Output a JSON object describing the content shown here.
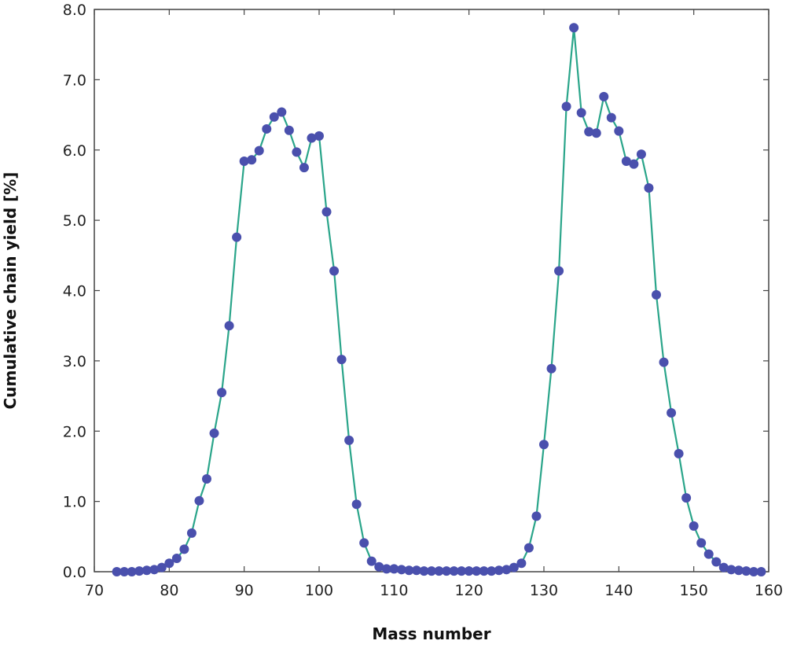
{
  "chart_data": {
    "type": "line",
    "title": "",
    "xlabel": "Mass number",
    "ylabel": "Cumulative chain yield [%]",
    "xlim": [
      70,
      160
    ],
    "ylim": [
      0.0,
      8.0
    ],
    "xticks": [
      "70",
      "80",
      "90",
      "100",
      "110",
      "120",
      "130",
      "140",
      "150",
      "160"
    ],
    "yticks": [
      "0.0",
      "1.0",
      "2.0",
      "3.0",
      "4.0",
      "5.0",
      "6.0",
      "7.0",
      "8.0"
    ],
    "grid": false,
    "legend": "none",
    "line_color": "#2aa58a",
    "marker_color": "#4a50ad",
    "series": [
      {
        "x": [
          73,
          74,
          75,
          76,
          77,
          78,
          79,
          80,
          81,
          82,
          83,
          84,
          85,
          86,
          87,
          88,
          89,
          90,
          91,
          92,
          93,
          94,
          95,
          96,
          97,
          98,
          99,
          100,
          101,
          102,
          103,
          104,
          105,
          106,
          107,
          108,
          109,
          110,
          111,
          112,
          113,
          114,
          115,
          116,
          117,
          118,
          119,
          120,
          121,
          122,
          123,
          124,
          125,
          126,
          127,
          128,
          129,
          130,
          131,
          132,
          133,
          134,
          135,
          136,
          137,
          138,
          139,
          140,
          141,
          142,
          143,
          144,
          145,
          146,
          147,
          148,
          149,
          150,
          151,
          152,
          153,
          154,
          155,
          156,
          157,
          158,
          159
        ],
        "y": [
          0.0,
          0.0,
          0.0,
          0.01,
          0.02,
          0.03,
          0.06,
          0.12,
          0.19,
          0.32,
          0.55,
          1.01,
          1.32,
          1.97,
          2.55,
          3.5,
          4.76,
          5.84,
          5.86,
          5.99,
          6.3,
          6.47,
          6.54,
          6.28,
          5.97,
          5.75,
          6.17,
          6.2,
          5.12,
          4.28,
          3.02,
          1.87,
          0.96,
          0.41,
          0.15,
          0.07,
          0.04,
          0.04,
          0.03,
          0.02,
          0.02,
          0.01,
          0.01,
          0.01,
          0.01,
          0.01,
          0.01,
          0.01,
          0.01,
          0.01,
          0.01,
          0.02,
          0.03,
          0.06,
          0.12,
          0.34,
          0.79,
          1.81,
          2.89,
          4.28,
          6.62,
          7.74,
          6.53,
          6.26,
          6.24,
          6.76,
          6.46,
          6.27,
          5.84,
          5.8,
          5.94,
          5.46,
          3.94,
          2.98,
          2.26,
          1.68,
          1.05,
          0.65,
          0.41,
          0.25,
          0.14,
          0.06,
          0.03,
          0.02,
          0.01,
          0.0,
          0.0
        ]
      }
    ]
  }
}
